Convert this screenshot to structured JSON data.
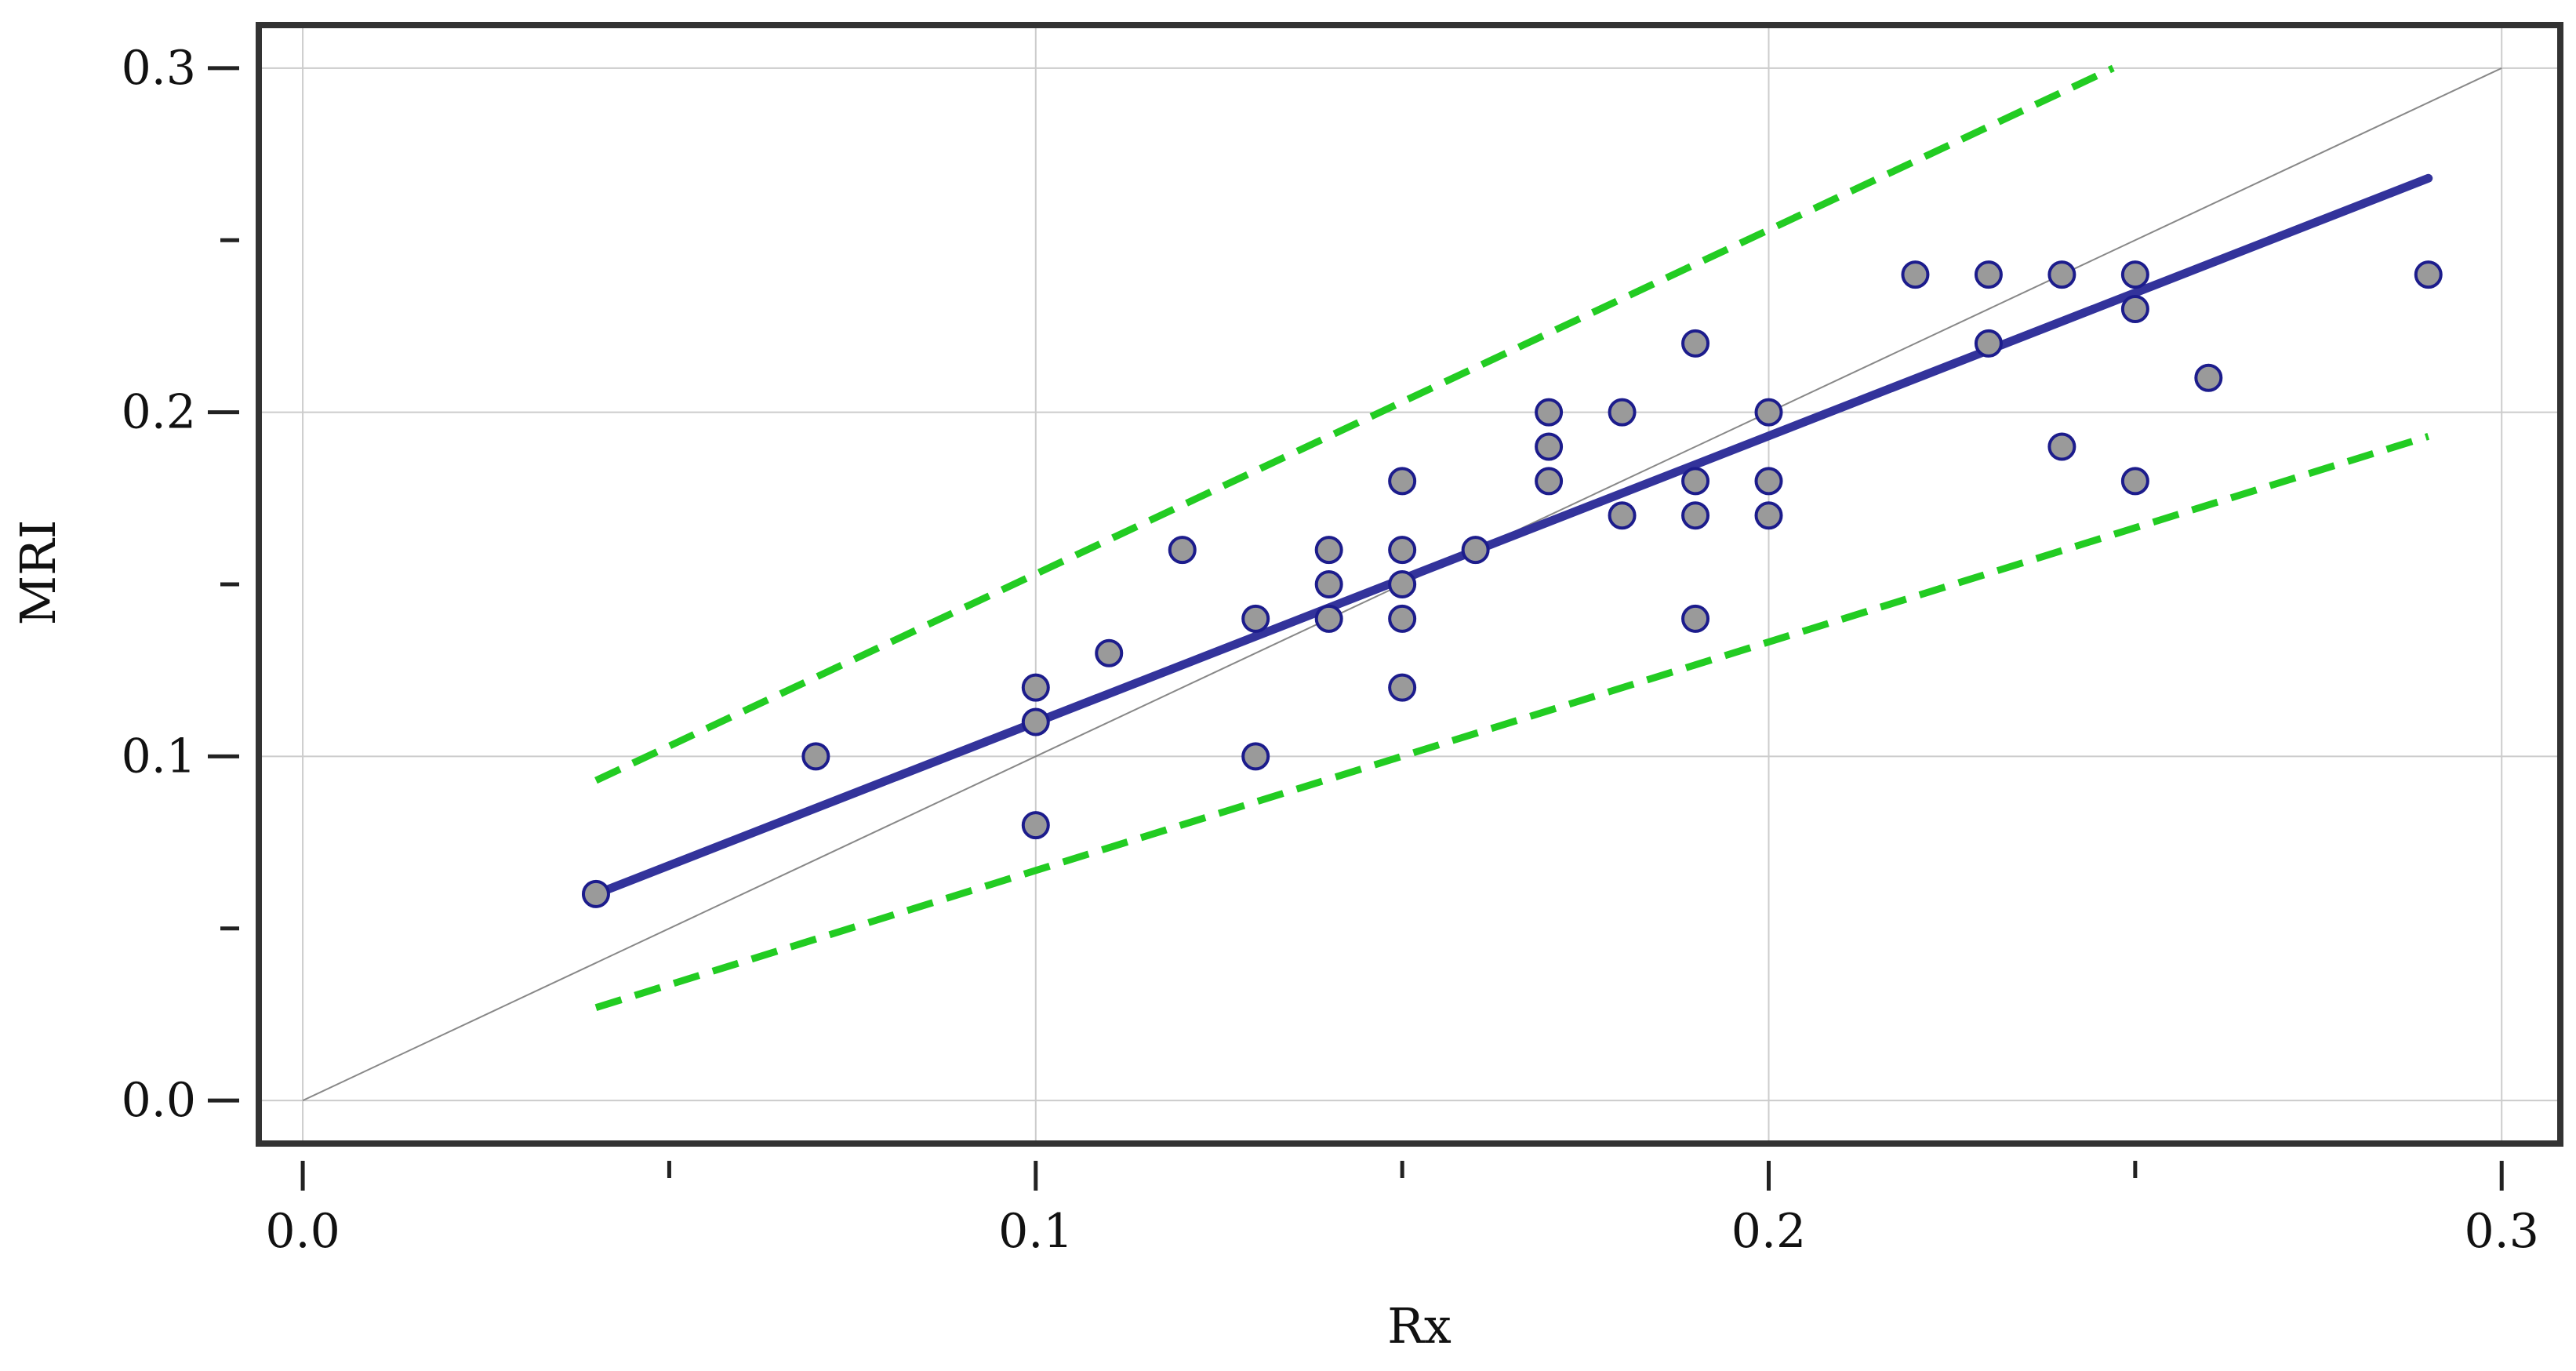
{
  "chart_data": {
    "type": "scatter",
    "title": "",
    "xlabel": "Rx",
    "ylabel": "MRI",
    "xlim": [
      -0.006,
      0.308
    ],
    "ylim": [
      -0.0125,
      0.3125
    ],
    "x_ticks": [
      0.0,
      0.1,
      0.2,
      0.3
    ],
    "x_tick_labels": [
      "0.0",
      "0.1",
      "0.2",
      "0.3"
    ],
    "x_minor_ticks": [
      0.05,
      0.15,
      0.25
    ],
    "y_ticks": [
      0.0,
      0.1,
      0.2,
      0.3
    ],
    "y_tick_labels": [
      "0.0",
      "0.1",
      "0.2",
      "0.3"
    ],
    "y_minor_ticks": [
      0.05,
      0.15,
      0.25
    ],
    "grid": true,
    "legend": "none",
    "colors": {
      "points_fill": "#9a9a9a",
      "points_stroke": "#1c1c8c",
      "fit_line": "#33339b",
      "bounds": "#22cc22",
      "identity": "#888888",
      "grid": "#cccccc",
      "frame": "#333333"
    },
    "points": [
      {
        "x": 0.04,
        "y": 0.06
      },
      {
        "x": 0.07,
        "y": 0.1
      },
      {
        "x": 0.1,
        "y": 0.12
      },
      {
        "x": 0.1,
        "y": 0.11
      },
      {
        "x": 0.1,
        "y": 0.08
      },
      {
        "x": 0.11,
        "y": 0.13
      },
      {
        "x": 0.12,
        "y": 0.16
      },
      {
        "x": 0.13,
        "y": 0.14
      },
      {
        "x": 0.13,
        "y": 0.1
      },
      {
        "x": 0.14,
        "y": 0.16
      },
      {
        "x": 0.14,
        "y": 0.15
      },
      {
        "x": 0.14,
        "y": 0.14
      },
      {
        "x": 0.15,
        "y": 0.18
      },
      {
        "x": 0.15,
        "y": 0.16
      },
      {
        "x": 0.15,
        "y": 0.15
      },
      {
        "x": 0.15,
        "y": 0.14
      },
      {
        "x": 0.15,
        "y": 0.12
      },
      {
        "x": 0.16,
        "y": 0.16
      },
      {
        "x": 0.17,
        "y": 0.2
      },
      {
        "x": 0.17,
        "y": 0.19
      },
      {
        "x": 0.17,
        "y": 0.18
      },
      {
        "x": 0.18,
        "y": 0.2
      },
      {
        "x": 0.18,
        "y": 0.17
      },
      {
        "x": 0.19,
        "y": 0.22
      },
      {
        "x": 0.19,
        "y": 0.18
      },
      {
        "x": 0.19,
        "y": 0.17
      },
      {
        "x": 0.19,
        "y": 0.14
      },
      {
        "x": 0.2,
        "y": 0.2
      },
      {
        "x": 0.2,
        "y": 0.18
      },
      {
        "x": 0.2,
        "y": 0.17
      },
      {
        "x": 0.22,
        "y": 0.24
      },
      {
        "x": 0.23,
        "y": 0.24
      },
      {
        "x": 0.23,
        "y": 0.22
      },
      {
        "x": 0.24,
        "y": 0.24
      },
      {
        "x": 0.24,
        "y": 0.19
      },
      {
        "x": 0.25,
        "y": 0.24
      },
      {
        "x": 0.25,
        "y": 0.23
      },
      {
        "x": 0.25,
        "y": 0.18
      },
      {
        "x": 0.26,
        "y": 0.21
      },
      {
        "x": 0.29,
        "y": 0.24
      }
    ],
    "fit_line": [
      {
        "x": 0.04,
        "y": 0.06
      },
      {
        "x": 0.29,
        "y": 0.268
      }
    ],
    "upper_bound": [
      {
        "x": 0.04,
        "y": 0.093
      },
      {
        "x": 0.247,
        "y": 0.3
      }
    ],
    "lower_bound": [
      {
        "x": 0.04,
        "y": 0.027
      },
      {
        "x": 0.29,
        "y": 0.193
      }
    ],
    "identity_line": [
      {
        "x": 0.0,
        "y": 0.0
      },
      {
        "x": 0.3,
        "y": 0.3
      }
    ]
  }
}
